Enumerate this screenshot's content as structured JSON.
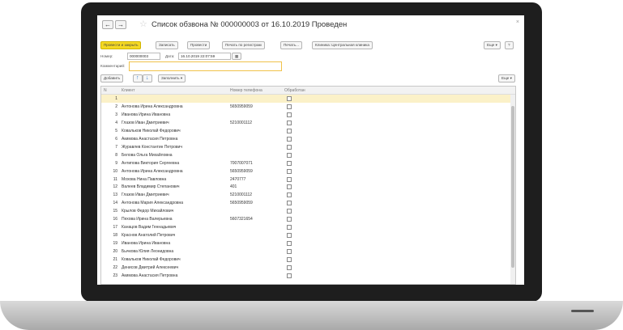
{
  "window": {
    "title": "Список обзвона № 000000003 от 16.10.2019 Проведен",
    "back": "←",
    "forward": "→",
    "star": "☆",
    "close": "×"
  },
  "toolbar": {
    "post_close": "Провести и закрыть",
    "save": "Записать",
    "post": "Провести",
    "print_reg": "Печать по регистрам",
    "print": "Печать...",
    "client": "Клиника: Центральная клиника",
    "more": "Еще ▾",
    "help": "?"
  },
  "form": {
    "number_label": "Номер:",
    "number": "000000003",
    "date_label": "Дата:",
    "date": "16.10.2019 22:07:59",
    "comment_label": "Комментарий:",
    "comment": ""
  },
  "table_toolbar": {
    "add": "Добавить",
    "up": "↑",
    "down": "↓",
    "fill": "Заполнить ▾",
    "more": "Еще ▾"
  },
  "table": {
    "headers": [
      "N",
      "Клиент",
      "Номер телефона",
      "Обработан"
    ],
    "rows": [
      [
        "1",
        "",
        ""
      ],
      [
        "2",
        "Антонова Ирина Александровна",
        "5650959059"
      ],
      [
        "3",
        "Иванова Ирина Ивановна",
        ""
      ],
      [
        "4",
        "Глазов Иван Дмитриевич",
        "5210001112"
      ],
      [
        "5",
        "Ковальков Николай Федорович",
        ""
      ],
      [
        "6",
        "Акимова Анастасия Петровна",
        ""
      ],
      [
        "7",
        "Журавлев Константин Петрович",
        ""
      ],
      [
        "8",
        "Белова Ольга Михайловна",
        ""
      ],
      [
        "9",
        "Антипова Виктория Сергеевна",
        "7007007071"
      ],
      [
        "10",
        "Антонова Ирина Александровна",
        "5650959059"
      ],
      [
        "11",
        "Мохова Нина Павловна",
        "2470777"
      ],
      [
        "12",
        "Валеев Владимир Степанович",
        "401"
      ],
      [
        "13",
        "Глазов Иван Дмитриевич",
        "5210001112"
      ],
      [
        "14",
        "Антонова Мария Александровна",
        "5650959059"
      ],
      [
        "15",
        "Крылов Федор Михайлович",
        ""
      ],
      [
        "16",
        "Пехова Ирина Валерьевна",
        "5607321654"
      ],
      [
        "17",
        "Канацов Вадим Геннадьевич",
        ""
      ],
      [
        "18",
        "Краснов Анатолий Петрович",
        ""
      ],
      [
        "19",
        "Иванова Ирина Ивановна",
        ""
      ],
      [
        "20",
        "Бычкова Юлия Леонидовна",
        ""
      ],
      [
        "21",
        "Ковальков Николай Федорович",
        ""
      ],
      [
        "22",
        "Денисов Дмитрий Алексеевич",
        ""
      ],
      [
        "23",
        "Акимова Анастасия Петровна",
        ""
      ]
    ]
  }
}
